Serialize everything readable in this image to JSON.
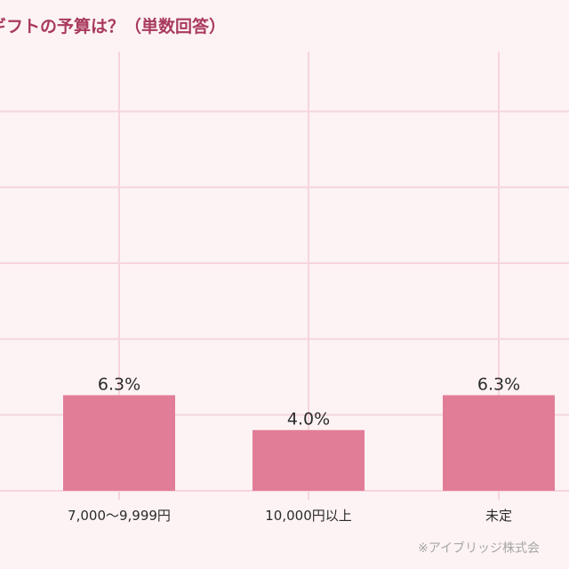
{
  "chart_data": {
    "type": "bar",
    "title": "ギフトの予算は？（単数回答）",
    "xlabel": "",
    "ylabel": "",
    "categories": [
      "7,000〜9,999円",
      "10,000円以上",
      "未定"
    ],
    "values": [
      6.3,
      4.0,
      6.3
    ],
    "value_labels": [
      "6.3%",
      "4.0%",
      "6.3%"
    ],
    "ylim": [
      0,
      30
    ],
    "grid": true,
    "legend": "none"
  },
  "source": "※アイブリッジ株式会",
  "colors": {
    "background": "#fdf3f4",
    "bar": "#e27d97",
    "grid": "#f6d5de",
    "title": "#a93a5c",
    "label": "#2b2b2b",
    "source": "#a7a7a7"
  }
}
